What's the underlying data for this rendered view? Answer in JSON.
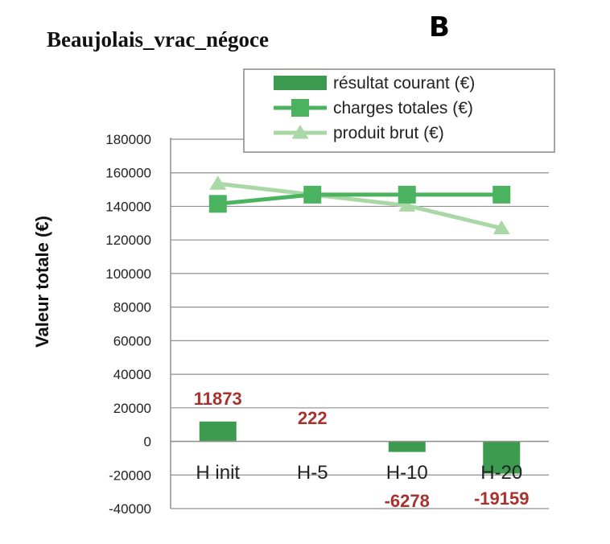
{
  "panel_letter": "B",
  "chart_data": {
    "type": "bar+line",
    "title": "Beaujolais_vrac_négoce",
    "ylabel": "Valeur totale (€)",
    "xlabel": "",
    "categories": [
      "H init",
      "H-5",
      "H-10",
      "H-20"
    ],
    "ylim": [
      -40000,
      180000
    ],
    "yticks": [
      -40000,
      -20000,
      0,
      20000,
      40000,
      60000,
      80000,
      100000,
      120000,
      140000,
      160000,
      180000
    ],
    "grid": true,
    "legend_position": "top-right",
    "series": [
      {
        "name": "résultat courant (€)",
        "kind": "bar",
        "color": "#3d9b4f",
        "values": [
          11873,
          222,
          -6278,
          -19159
        ],
        "data_labels": [
          "11873",
          "222",
          "-6278",
          "-19159"
        ]
      },
      {
        "name": "charges totales (€)",
        "kind": "line",
        "marker": "square",
        "color": "#4bb35f",
        "values": [
          141500,
          147000,
          147000,
          147000
        ]
      },
      {
        "name": "produit brut (€)",
        "kind": "line",
        "marker": "triangle",
        "color": "#a9d8a6",
        "values": [
          153500,
          147000,
          140500,
          127000
        ]
      }
    ]
  }
}
